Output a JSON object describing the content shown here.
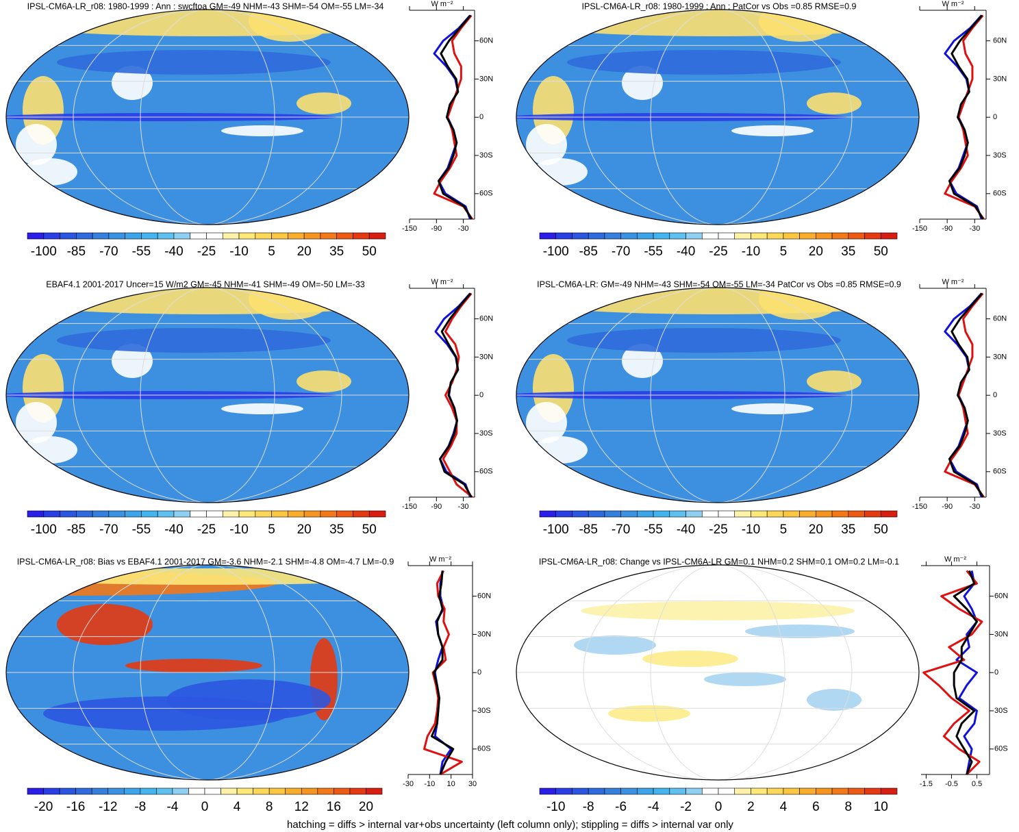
{
  "caption": "hatching = diffs > internal var+obs uncertainty (left column only); stippling = diffs > internal var only",
  "chart_data": [
    {
      "type": "line",
      "title": "IPSL-CM6A-LR_r08: 1980-1999 : Ann : swcftoa GM=-49 NHM=-43 SHM=-54 OM=-55 LM=-34",
      "unit": "W m⁻²",
      "colorbar_ticks": [
        -100,
        -85,
        -70,
        -55,
        -40,
        -25,
        -10,
        5,
        20,
        35,
        50
      ],
      "colorbar_lim": [
        -107.5,
        57.5
      ],
      "xlim": [
        -150,
        -5
      ],
      "xticks": [
        -150,
        -90,
        -30
      ],
      "ylim": [
        -80,
        84
      ],
      "yticks": [
        {
          "value": 60,
          "label": "60N"
        },
        {
          "value": 30,
          "label": "30N"
        },
        0,
        {
          "value": -30,
          "label": "30S"
        },
        {
          "value": -60,
          "label": "60S"
        }
      ],
      "latitudes": [
        -80,
        -70,
        -60,
        -50,
        -40,
        -30,
        -20,
        -10,
        0,
        10,
        20,
        30,
        40,
        50,
        60,
        70,
        80
      ],
      "series": [
        {
          "color": "#1010e0",
          "values": [
            -15,
            -25,
            -70,
            -85,
            -65,
            -55,
            -45,
            -52,
            -65,
            -60,
            -42,
            -48,
            -68,
            -95,
            -75,
            -40,
            -15
          ]
        },
        {
          "color": "#e01010",
          "values": [
            -10,
            -30,
            -95,
            -80,
            -60,
            -45,
            -50,
            -55,
            -65,
            -55,
            -45,
            -35,
            -35,
            -50,
            -55,
            -35,
            -12
          ]
        },
        {
          "color": "#000000",
          "values": [
            -12,
            -28,
            -75,
            -85,
            -63,
            -52,
            -45,
            -52,
            -67,
            -60,
            -42,
            -46,
            -65,
            -80,
            -62,
            -38,
            -14
          ]
        }
      ]
    },
    {
      "type": "line",
      "title": "IPSL-CM6A-LR_r08: 1980-1999 : Ann : PatCor vs Obs =0.85 RMSE=0.9",
      "unit": "W m⁻²",
      "colorbar_ticks": [
        -100,
        -85,
        -70,
        -55,
        -40,
        -25,
        -10,
        5,
        20,
        35,
        50
      ],
      "colorbar_lim": [
        -107.5,
        57.5
      ],
      "xlim": [
        -150,
        -5
      ],
      "xticks": [
        -150,
        -90,
        -30
      ],
      "ylim": [
        -80,
        84
      ],
      "yticks": [
        {
          "value": 60,
          "label": "60N"
        },
        {
          "value": 30,
          "label": "30N"
        },
        0,
        {
          "value": -30,
          "label": "30S"
        },
        {
          "value": -60,
          "label": "60S"
        }
      ],
      "latitudes": [
        -80,
        -70,
        -60,
        -50,
        -40,
        -30,
        -20,
        -10,
        0,
        10,
        20,
        30,
        40,
        50,
        60,
        70,
        80
      ],
      "series": [
        {
          "color": "#1010e0",
          "values": [
            -15,
            -25,
            -70,
            -85,
            -65,
            -55,
            -45,
            -52,
            -65,
            -60,
            -42,
            -48,
            -68,
            -95,
            -75,
            -40,
            -15
          ]
        },
        {
          "color": "#e01010",
          "values": [
            -10,
            -30,
            -95,
            -80,
            -60,
            -45,
            -50,
            -55,
            -65,
            -55,
            -45,
            -35,
            -35,
            -50,
            -55,
            -35,
            -12
          ]
        },
        {
          "color": "#000000",
          "values": [
            -12,
            -28,
            -75,
            -85,
            -63,
            -52,
            -45,
            -52,
            -67,
            -60,
            -42,
            -46,
            -65,
            -80,
            -62,
            -38,
            -14
          ]
        }
      ]
    },
    {
      "type": "line",
      "title": "EBAF4.1 2001-2017 Uncer=15 W/m2 GM=-45 NHM=-41 SHM=-49 OM=-50 LM=-33",
      "unit": "W m⁻²",
      "colorbar_ticks": [
        -100,
        -85,
        -70,
        -55,
        -40,
        -25,
        -10,
        5,
        20,
        35,
        50
      ],
      "colorbar_lim": [
        -107.5,
        57.5
      ],
      "xlim": [
        -150,
        -5
      ],
      "xticks": [
        -150,
        -90,
        -30
      ],
      "ylim": [
        -80,
        84
      ],
      "yticks": [
        {
          "value": 60,
          "label": "60N"
        },
        {
          "value": 30,
          "label": "30N"
        },
        0,
        {
          "value": -30,
          "label": "30S"
        },
        {
          "value": -60,
          "label": "60S"
        }
      ],
      "latitudes": [
        -80,
        -70,
        -60,
        -50,
        -40,
        -30,
        -20,
        -10,
        0,
        10,
        20,
        30,
        40,
        50,
        60,
        70,
        80
      ],
      "series": [
        {
          "color": "#1010e0",
          "values": [
            -15,
            -25,
            -68,
            -82,
            -63,
            -52,
            -44,
            -50,
            -62,
            -58,
            -42,
            -47,
            -66,
            -92,
            -73,
            -40,
            -15
          ]
        },
        {
          "color": "#e01010",
          "values": [
            -10,
            -45,
            -60,
            -75,
            -58,
            -45,
            -45,
            -55,
            -70,
            -55,
            -45,
            -40,
            -48,
            -70,
            -55,
            -35,
            -12
          ]
        },
        {
          "color": "#000000",
          "values": [
            -12,
            -28,
            -72,
            -82,
            -62,
            -50,
            -44,
            -50,
            -63,
            -58,
            -42,
            -46,
            -63,
            -78,
            -60,
            -38,
            -14
          ]
        }
      ]
    },
    {
      "type": "line",
      "title": "IPSL-CM6A-LR: GM=-49 NHM=-43 SHM=-54 OM=-55 LM=-34 PatCor vs Obs =0.85 RMSE=0.9",
      "unit": "W m⁻²",
      "colorbar_ticks": [
        -100,
        -85,
        -70,
        -55,
        -40,
        -25,
        -10,
        5,
        20,
        35,
        50
      ],
      "colorbar_lim": [
        -107.5,
        57.5
      ],
      "xlim": [
        -150,
        -5
      ],
      "xticks": [
        -150,
        -90,
        -30
      ],
      "ylim": [
        -80,
        84
      ],
      "yticks": [
        {
          "value": 60,
          "label": "60N"
        },
        {
          "value": 30,
          "label": "30N"
        },
        0,
        {
          "value": -30,
          "label": "30S"
        },
        {
          "value": -60,
          "label": "60S"
        }
      ],
      "latitudes": [
        -80,
        -70,
        -60,
        -50,
        -40,
        -30,
        -20,
        -10,
        0,
        10,
        20,
        30,
        40,
        50,
        60,
        70,
        80
      ],
      "series": [
        {
          "color": "#1010e0",
          "values": [
            -15,
            -25,
            -70,
            -85,
            -65,
            -55,
            -45,
            -52,
            -65,
            -60,
            -42,
            -48,
            -68,
            -95,
            -75,
            -40,
            -15
          ]
        },
        {
          "color": "#e01010",
          "values": [
            -10,
            -30,
            -95,
            -80,
            -60,
            -45,
            -50,
            -55,
            -65,
            -55,
            -45,
            -35,
            -35,
            -50,
            -55,
            -35,
            -12
          ]
        },
        {
          "color": "#000000",
          "values": [
            -12,
            -28,
            -75,
            -85,
            -63,
            -52,
            -45,
            -52,
            -67,
            -60,
            -42,
            -46,
            -65,
            -80,
            -62,
            -38,
            -14
          ]
        }
      ]
    },
    {
      "type": "line",
      "title": "IPSL-CM6A-LR_r08: Bias vs EBAF4.1 2001-2017 GM=-3.6 NHM=-2.1 SHM=-4.8 OM=-4.7 LM=-0.9",
      "unit": "W m⁻²",
      "colorbar_ticks": [
        -20,
        -16,
        -12,
        -8,
        -4,
        0,
        4,
        8,
        12,
        16,
        20
      ],
      "colorbar_lim": [
        -22,
        22
      ],
      "xlim": [
        -30,
        30
      ],
      "xticks": [
        -30,
        -10,
        10,
        30
      ],
      "ylim": [
        -80,
        84
      ],
      "yticks": [
        {
          "value": 60,
          "label": "60N"
        },
        {
          "value": 30,
          "label": "30N"
        },
        0,
        {
          "value": -30,
          "label": "30S"
        },
        {
          "value": -60,
          "label": "60S"
        }
      ],
      "latitudes": [
        -80,
        -70,
        -60,
        -50,
        -40,
        -30,
        -20,
        -10,
        0,
        10,
        20,
        30,
        40,
        50,
        60,
        70,
        80
      ],
      "series": [
        {
          "color": "#1010e0",
          "values": [
            0,
            2,
            10,
            -5,
            -3,
            -2,
            -1,
            -3,
            -5,
            -2,
            2,
            -2,
            -4,
            3,
            0,
            0,
            2
          ]
        },
        {
          "color": "#e01010",
          "values": [
            0,
            20,
            -15,
            -12,
            -5,
            -3,
            -2,
            -4,
            -7,
            5,
            3,
            8,
            3,
            4,
            -2,
            -3,
            3
          ]
        },
        {
          "color": "#000000",
          "values": [
            0,
            5,
            12,
            -8,
            -3,
            -2,
            -1,
            -3,
            -6,
            2,
            2,
            -2,
            -3,
            2,
            -1,
            1,
            2
          ]
        }
      ]
    },
    {
      "type": "line",
      "title": "IPSL-CM6A-LR_r08: Change vs IPSL-CM6A-LR GM=0.1 NHM=0.2 SHM=0.1 OM=0.2 LM=-0.1",
      "unit": "W m⁻²",
      "colorbar_ticks": [
        -10,
        -8,
        -6,
        -4,
        -2,
        0,
        2,
        4,
        6,
        8,
        10
      ],
      "colorbar_lim": [
        -11,
        11
      ],
      "xlim": [
        -1.7,
        1.0
      ],
      "xticks": [
        -1.5,
        -0.5,
        0.5
      ],
      "ylim": [
        -80,
        84
      ],
      "yticks": [
        {
          "value": 60,
          "label": "60N"
        },
        {
          "value": 30,
          "label": "30N"
        },
        0,
        {
          "value": -30,
          "label": "30S"
        },
        {
          "value": -60,
          "label": "60S"
        }
      ],
      "latitudes": [
        -80,
        -70,
        -60,
        -50,
        -40,
        -30,
        -20,
        -10,
        0,
        10,
        20,
        30,
        40,
        50,
        60,
        70,
        80
      ],
      "series": [
        {
          "color": "#1010e0",
          "values": [
            0.1,
            0.2,
            0.3,
            0.0,
            0.4,
            0.5,
            -0.2,
            0.1,
            0.5,
            -0.3,
            0.2,
            0.1,
            0.5,
            0.3,
            0.0,
            0.4,
            0.3
          ]
        },
        {
          "color": "#e01010",
          "values": [
            0.1,
            0.6,
            -0.2,
            -0.8,
            -0.4,
            0.2,
            -0.5,
            -1.0,
            -1.6,
            0.0,
            -0.6,
            0.3,
            0.7,
            -0.2,
            -0.9,
            0.5,
            0.1
          ]
        },
        {
          "color": "#000000",
          "values": [
            0.1,
            0.3,
            0.0,
            -0.3,
            -0.1,
            0.4,
            -0.3,
            -0.4,
            -0.4,
            -0.1,
            -0.1,
            0.2,
            0.5,
            0.1,
            -0.4,
            0.4,
            0.2
          ]
        }
      ]
    }
  ]
}
